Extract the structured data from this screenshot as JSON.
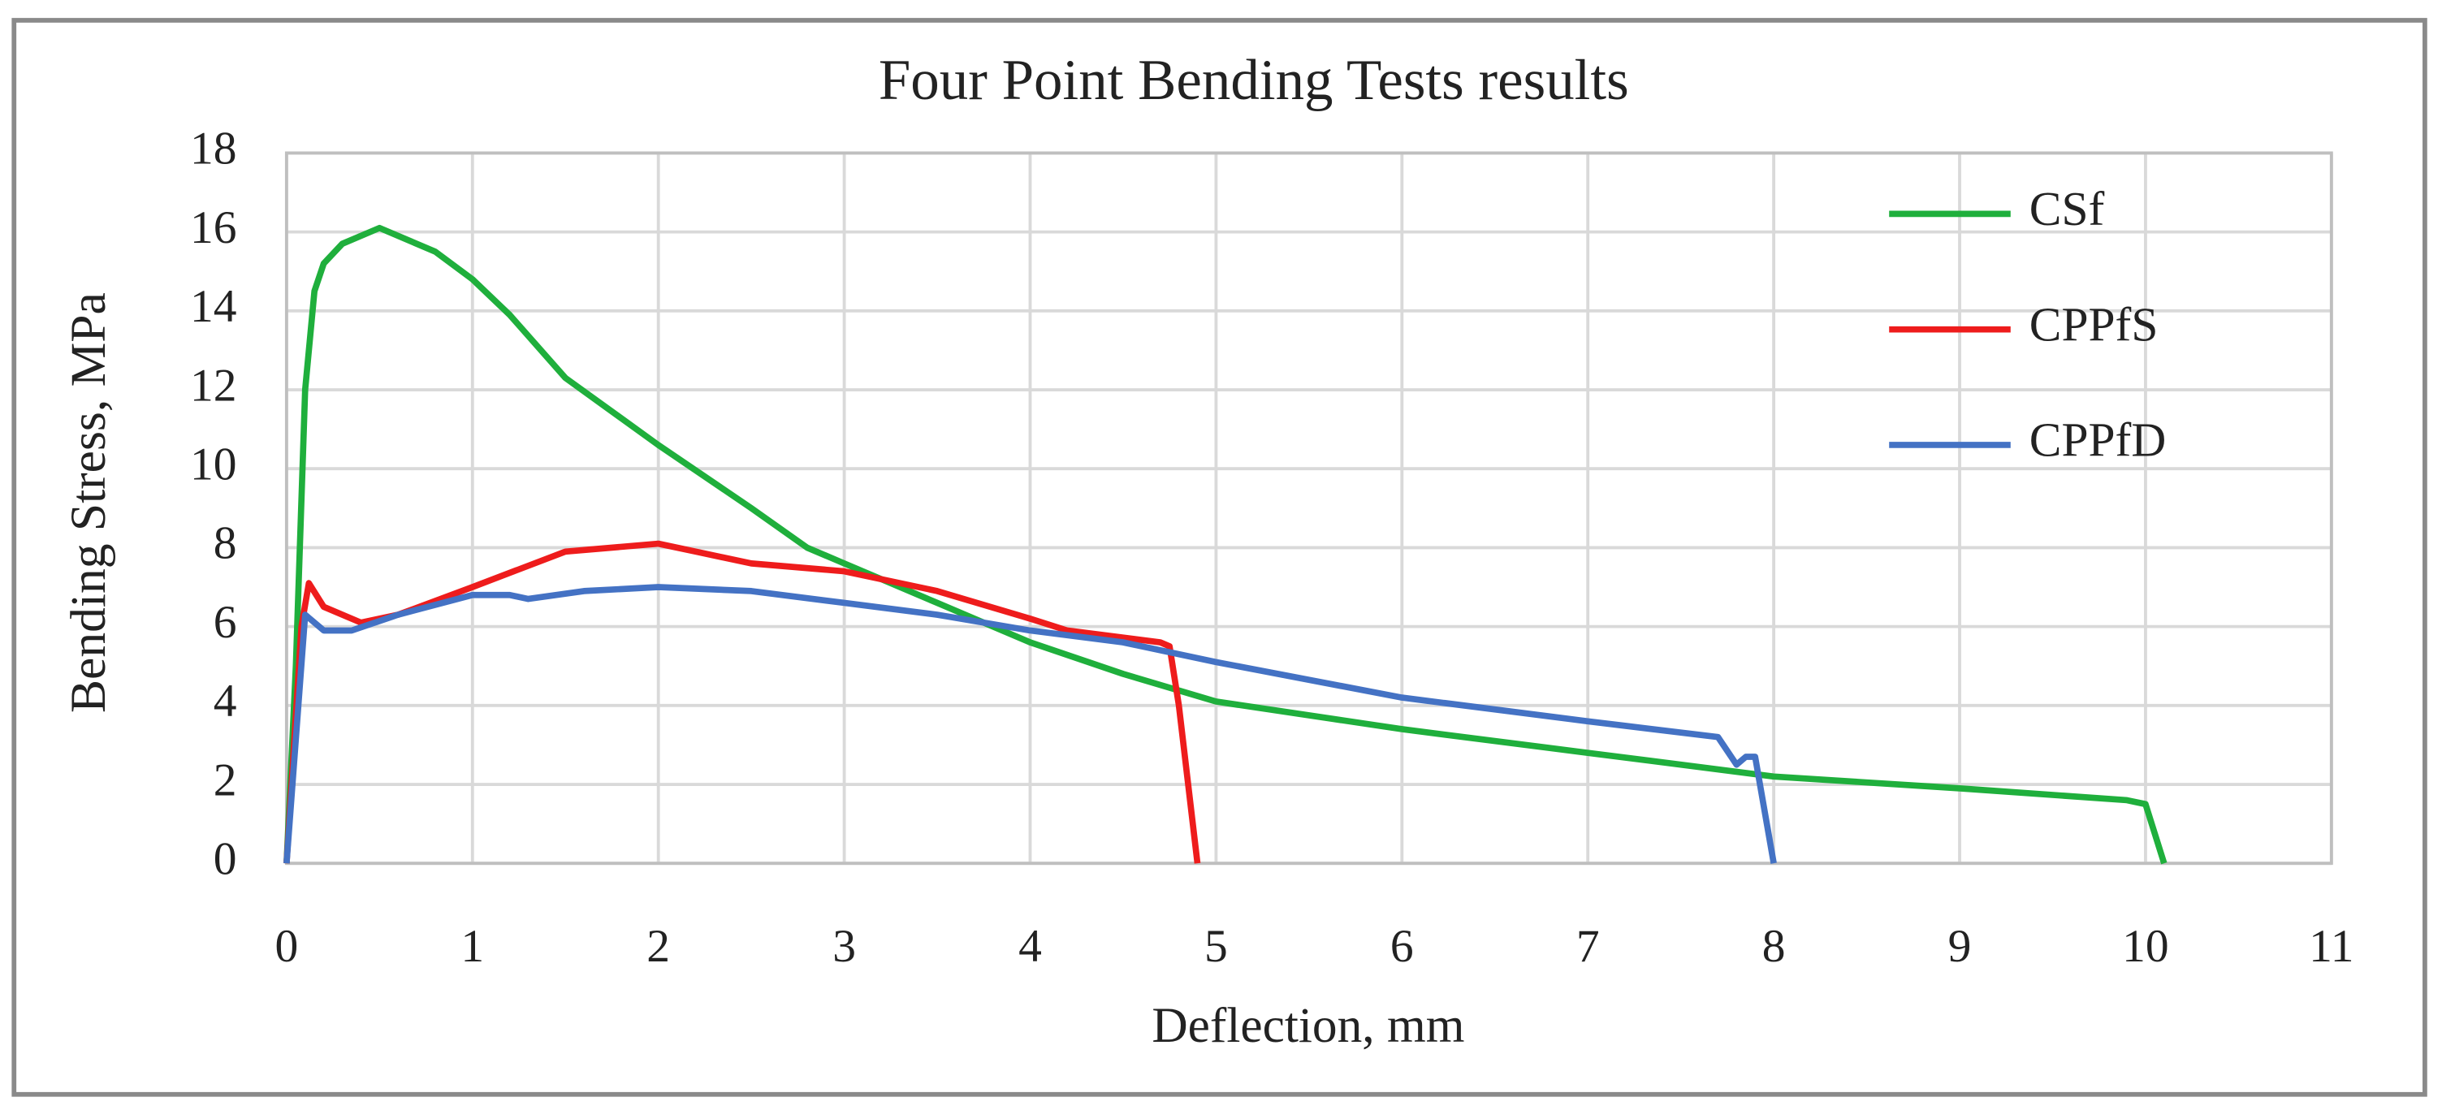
{
  "chart_data": {
    "type": "line",
    "title": "Four Point Bending Tests results",
    "x_label": "Deflection, mm",
    "y_label": "Bending Stress, MPa",
    "xlim": [
      0,
      11
    ],
    "ylim": [
      0,
      18
    ],
    "xticks": [
      0,
      1,
      2,
      3,
      4,
      5,
      6,
      7,
      8,
      9,
      10,
      11
    ],
    "yticks": [
      0,
      2,
      4,
      6,
      8,
      10,
      12,
      14,
      16,
      18
    ],
    "grid": true,
    "legend": "upper right",
    "series": [
      {
        "name": "CSf",
        "color": "#1faf3c",
        "x": [
          0,
          0.05,
          0.1,
          0.15,
          0.2,
          0.3,
          0.5,
          0.8,
          1,
          1.2,
          1.5,
          2,
          2.5,
          2.8,
          3,
          3.5,
          4,
          4.5,
          5,
          6,
          7,
          8,
          9,
          9.9,
          10,
          10.1
        ],
        "values": [
          0,
          5,
          12,
          14.5,
          15.2,
          15.7,
          16.1,
          15.5,
          14.8,
          13.9,
          12.3,
          10.6,
          9,
          8,
          7.6,
          6.6,
          5.6,
          4.8,
          4.1,
          3.4,
          2.8,
          2.2,
          1.9,
          1.6,
          1.5,
          0
        ]
      },
      {
        "name": "CPPfS",
        "color": "#ee1c1c",
        "x": [
          0,
          0.08,
          0.12,
          0.2,
          0.4,
          0.6,
          1,
          1.5,
          2,
          2.2,
          2.5,
          3,
          3.5,
          4,
          4.2,
          4.7,
          4.75,
          4.8,
          4.9
        ],
        "values": [
          0,
          6,
          7.1,
          6.5,
          6.1,
          6.3,
          7,
          7.9,
          8.1,
          7.9,
          7.6,
          7.4,
          6.9,
          6.2,
          5.9,
          5.6,
          5.5,
          4,
          0
        ]
      },
      {
        "name": "CPPfD",
        "color": "#4472c4",
        "x": [
          0,
          0.1,
          0.2,
          0.35,
          0.6,
          1,
          1.2,
          1.3,
          1.6,
          2,
          2.5,
          3,
          3.5,
          4,
          4.5,
          5,
          6,
          7,
          7.7,
          7.8,
          7.85,
          7.9,
          8
        ],
        "values": [
          0,
          6.3,
          5.9,
          5.9,
          6.3,
          6.8,
          6.8,
          6.7,
          6.9,
          7,
          6.9,
          6.6,
          6.3,
          5.9,
          5.6,
          5.1,
          4.2,
          3.6,
          3.2,
          2.5,
          2.7,
          2.7,
          0
        ]
      }
    ]
  }
}
